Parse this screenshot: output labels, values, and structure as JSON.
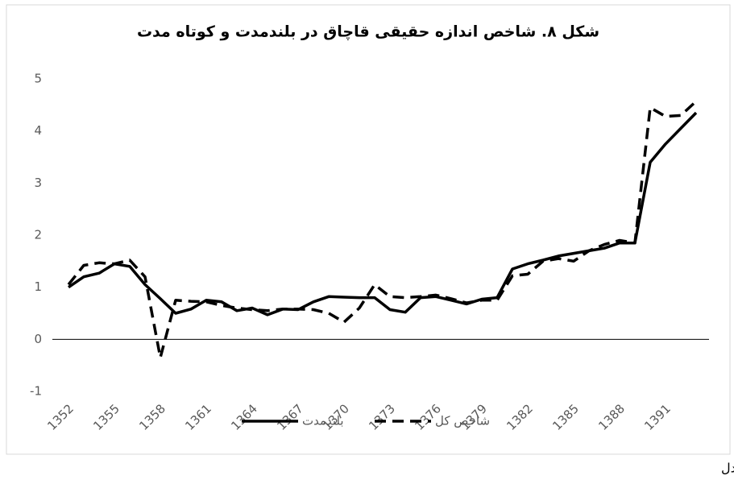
{
  "chart_data": {
    "type": "line",
    "title": "شکل ۸. شاخص اندازه حقیقی قاچاق در بلندمدت و کوتاه مدت",
    "categories": [
      "1352",
      null,
      null,
      "1355",
      null,
      null,
      "1358",
      null,
      null,
      "1361",
      null,
      null,
      "1364",
      null,
      null,
      "1367",
      null,
      null,
      "1370",
      null,
      null,
      "1373",
      null,
      null,
      "1376",
      null,
      null,
      "1379",
      null,
      null,
      "1382",
      null,
      null,
      "1385",
      null,
      null,
      "1388",
      null,
      null,
      "1391",
      null,
      null
    ],
    "series": [
      {
        "name": "بلندمدت",
        "color": "#000000",
        "dash": false,
        "values": [
          1.0,
          1.2,
          1.27,
          1.45,
          1.4,
          1.05,
          0.78,
          0.5,
          0.58,
          0.75,
          0.72,
          0.55,
          0.6,
          0.47,
          0.58,
          0.57,
          0.72,
          0.82,
          0.81,
          0.8,
          0.8,
          0.57,
          0.52,
          0.8,
          0.82,
          0.75,
          0.68,
          0.77,
          0.8,
          1.35,
          1.45,
          1.52,
          1.6,
          1.65,
          1.7,
          1.75,
          1.85,
          1.85,
          3.4,
          3.75,
          4.05,
          4.35
        ]
      },
      {
        "name": "شاخص کل",
        "color": "#000000",
        "dash": true,
        "values": [
          1.05,
          1.42,
          1.47,
          1.45,
          1.52,
          1.2,
          -0.35,
          0.75,
          0.73,
          0.72,
          0.65,
          0.6,
          0.57,
          0.55,
          0.58,
          0.58,
          0.57,
          0.5,
          0.33,
          0.6,
          1.05,
          0.82,
          0.8,
          0.82,
          0.85,
          0.78,
          0.7,
          0.75,
          0.75,
          1.22,
          1.25,
          1.5,
          1.55,
          1.5,
          1.7,
          1.82,
          1.9,
          1.85,
          4.45,
          4.28,
          4.3,
          4.57
        ]
      }
    ],
    "ylim": [
      -1,
      5
    ],
    "yticks": [
      -1,
      0,
      1,
      2,
      3,
      4,
      5
    ],
    "grid": false,
    "legend": "bottom",
    "source": "مأخذ: نتایج مدل"
  }
}
